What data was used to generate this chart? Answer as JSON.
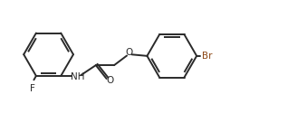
{
  "background": "#ffffff",
  "bond_color": "#2a2a2a",
  "atom_colors": {
    "F": "#2a2a2a",
    "O": "#2a2a2a",
    "N": "#2a2a2a",
    "Br": "#8B4513",
    "C": "#2a2a2a"
  },
  "bond_lw": 1.4,
  "figsize": [
    3.28,
    1.36
  ],
  "dpi": 100,
  "xlim": [
    0.0,
    10.5
  ],
  "ylim": [
    0.5,
    4.8
  ]
}
